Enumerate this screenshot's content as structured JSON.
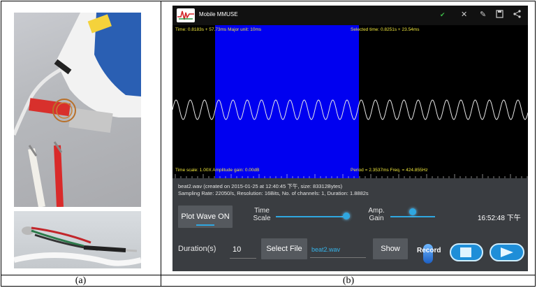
{
  "captions": {
    "a": "(a)",
    "b": "(b)"
  },
  "app": {
    "title": "Mobile MMUSE",
    "toolbar": {
      "check_icon": "✔",
      "close_icon": "✕",
      "edit_icon": "✎",
      "save_icon": "💾",
      "share_icon": "<"
    }
  },
  "plot": {
    "time_readout": "Time: 0.8183s + 57.73ms Major unit: 10ms",
    "selected_time": "Selected time: 0.8251s + 23.54ms",
    "scale_readout": "Time scale: 1.00X  Amplitude gain: 0.00dB",
    "period_readout": "Period = 2.3537ms  Freq. = 424.855Hz"
  },
  "info": {
    "line1": "beat2.wav (created on 2015-01-25 at 12:40:45 下午, size: 83312Bytes)",
    "line2": "Sampling Rate: 22050/s, Resolution: 16Bits, No. of channels: 1, Duration: 1.8882s"
  },
  "controls": {
    "plot_wave_label": "Plot Wave ON",
    "time_scale_label1": "Time",
    "time_scale_label2": "Scale",
    "amp_gain_label1": "Amp.",
    "amp_gain_label2": "Gain",
    "clock": "16:52:48 下午",
    "duration_label": "Duration(s)",
    "duration_value": "10",
    "select_file_label": "Select File",
    "file_name": "beat2.wav",
    "show_label": "Show",
    "record_label": "Record",
    "time_scale_level": 0.95,
    "amp_gain_level": 0.5
  },
  "colors": {
    "selection": "#0000f0",
    "accent": "#2fa7e0",
    "plot_text": "#f1e83b"
  }
}
